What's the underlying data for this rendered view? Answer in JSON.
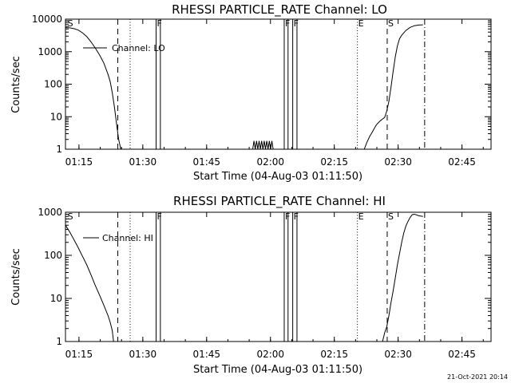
{
  "chart_data": [
    {
      "type": "line",
      "title": "RHESSI PARTICLE_RATE Channel: LO",
      "ylabel": "Counts/sec",
      "xlabel": "Start Time (04-Aug-03 01:11:50)",
      "legend": "Channel: LO",
      "x_unit": "minutes since 01:11:50",
      "xlim": [
        0,
        100
      ],
      "ylim": [
        1,
        10000
      ],
      "yscale": "log",
      "x_ticks": [
        {
          "label": "01:15",
          "x": 3.17
        },
        {
          "label": "01:30",
          "x": 18.17
        },
        {
          "label": "01:45",
          "x": 33.17
        },
        {
          "label": "02:00",
          "x": 48.17
        },
        {
          "label": "02:15",
          "x": 63.17
        },
        {
          "label": "02:30",
          "x": 78.17
        },
        {
          "label": "02:45",
          "x": 93.17
        }
      ],
      "y_ticks": [
        {
          "label": "1",
          "y": 1
        },
        {
          "label": "10",
          "y": 10
        },
        {
          "label": "100",
          "y": 100
        },
        {
          "label": "1000",
          "y": 1000
        },
        {
          "label": "10000",
          "y": 10000
        }
      ],
      "markers": [
        {
          "label": "S",
          "x": 0.3,
          "style": "none"
        },
        {
          "label": "",
          "x": 12.3,
          "style": "dashed"
        },
        {
          "label": "",
          "x": 15.2,
          "style": "dotted"
        },
        {
          "label": "F",
          "x": 21.3,
          "style": "solid"
        },
        {
          "label": "",
          "x": 22.3,
          "style": "solid"
        },
        {
          "label": "F",
          "x": 51.4,
          "style": "solid"
        },
        {
          "label": "",
          "x": 52.3,
          "style": "solid"
        },
        {
          "label": "F",
          "x": 53.4,
          "style": "solid"
        },
        {
          "label": "",
          "x": 54.4,
          "style": "solid"
        },
        {
          "label": "E",
          "x": 68.6,
          "style": "dotted"
        },
        {
          "label": "S",
          "x": 75.6,
          "style": "dashed"
        },
        {
          "label": "",
          "x": 84.4,
          "style": "dashdot"
        }
      ],
      "series": [
        {
          "name": "Channel: LO",
          "segments": [
            {
              "x": [
                0,
                1,
                2,
                3,
                4,
                5,
                6,
                7,
                8,
                9,
                10,
                10.5,
                11,
                11.5,
                12,
                12.5,
                13
              ],
              "y": [
                5500,
                5400,
                5100,
                4600,
                3800,
                2900,
                2000,
                1300,
                800,
                450,
                200,
                120,
                55,
                20,
                6,
                2,
                1
              ]
            },
            {
              "x": [
                44.0,
                44.3,
                44.6,
                44.9,
                45.2,
                45.5,
                45.8,
                46.1,
                46.4,
                46.7,
                47.0,
                47.3,
                47.6,
                47.9,
                48.2,
                48.5,
                48.8
              ],
              "y": [
                1,
                1.8,
                1,
                1.8,
                1,
                1.8,
                1,
                1.8,
                1,
                1.8,
                1,
                1.8,
                1,
                1.8,
                1,
                1.8,
                1
              ]
            },
            {
              "x": [
                70.2,
                70.8,
                71.5,
                72,
                72.5,
                73,
                73.5,
                74,
                74.5,
                75,
                75.5,
                76,
                76.5,
                77,
                77.5,
                78,
                78.5,
                79,
                80,
                81,
                82,
                83,
                84
              ],
              "y": [
                1,
                1.6,
                2.5,
                3.2,
                4.2,
                5.5,
                6.5,
                7.5,
                8.5,
                9.5,
                15,
                30,
                80,
                250,
                700,
                1500,
                2500,
                3200,
                4500,
                5600,
                6300,
                6600,
                6700
              ]
            }
          ]
        }
      ]
    },
    {
      "type": "line",
      "title": "RHESSI PARTICLE_RATE Channel: HI",
      "ylabel": "Counts/sec",
      "xlabel": "Start Time (04-Aug-03 01:11:50)",
      "legend": "Channel: HI",
      "x_unit": "minutes since 01:11:50",
      "xlim": [
        0,
        100
      ],
      "ylim": [
        1,
        1000
      ],
      "yscale": "log",
      "x_ticks": [
        {
          "label": "01:15",
          "x": 3.17
        },
        {
          "label": "01:30",
          "x": 18.17
        },
        {
          "label": "01:45",
          "x": 33.17
        },
        {
          "label": "02:00",
          "x": 48.17
        },
        {
          "label": "02:15",
          "x": 63.17
        },
        {
          "label": "02:30",
          "x": 78.17
        },
        {
          "label": "02:45",
          "x": 93.17
        }
      ],
      "y_ticks": [
        {
          "label": "1",
          "y": 1
        },
        {
          "label": "10",
          "y": 10
        },
        {
          "label": "100",
          "y": 100
        },
        {
          "label": "1000",
          "y": 1000
        }
      ],
      "markers": [
        {
          "label": "S",
          "x": 0.3,
          "style": "none"
        },
        {
          "label": "",
          "x": 12.3,
          "style": "dashed"
        },
        {
          "label": "",
          "x": 15.2,
          "style": "dotted"
        },
        {
          "label": "F",
          "x": 21.3,
          "style": "solid"
        },
        {
          "label": "",
          "x": 22.3,
          "style": "solid"
        },
        {
          "label": "F",
          "x": 51.4,
          "style": "solid"
        },
        {
          "label": "",
          "x": 52.3,
          "style": "solid"
        },
        {
          "label": "F",
          "x": 53.4,
          "style": "solid"
        },
        {
          "label": "",
          "x": 54.4,
          "style": "solid"
        },
        {
          "label": "E",
          "x": 68.6,
          "style": "dotted"
        },
        {
          "label": "S",
          "x": 75.6,
          "style": "dashed"
        },
        {
          "label": "",
          "x": 84.4,
          "style": "dashdot"
        }
      ],
      "series": [
        {
          "name": "Channel: HI",
          "segments": [
            {
              "x": [
                0,
                1,
                2,
                3,
                4,
                5,
                6,
                7,
                8,
                9,
                10,
                10.5,
                11,
                11.3
              ],
              "y": [
                500,
                350,
                230,
                150,
                95,
                60,
                35,
                20,
                12,
                7,
                4,
                2.8,
                1.8,
                1
              ]
            },
            {
              "x": [
                74.5,
                75,
                75.5,
                76,
                76.5,
                77,
                77.5,
                78,
                78.5,
                79,
                79.5,
                80,
                80.5,
                81,
                81.5,
                82,
                82.5,
                83,
                84
              ],
              "y": [
                1,
                1.6,
                2.2,
                4,
                8,
                15,
                30,
                60,
                110,
                200,
                330,
                480,
                620,
                760,
                880,
                900,
                870,
                830,
                800
              ]
            }
          ]
        }
      ]
    }
  ],
  "footer": {
    "timestamp": "21-Oct-2021 20:14"
  }
}
